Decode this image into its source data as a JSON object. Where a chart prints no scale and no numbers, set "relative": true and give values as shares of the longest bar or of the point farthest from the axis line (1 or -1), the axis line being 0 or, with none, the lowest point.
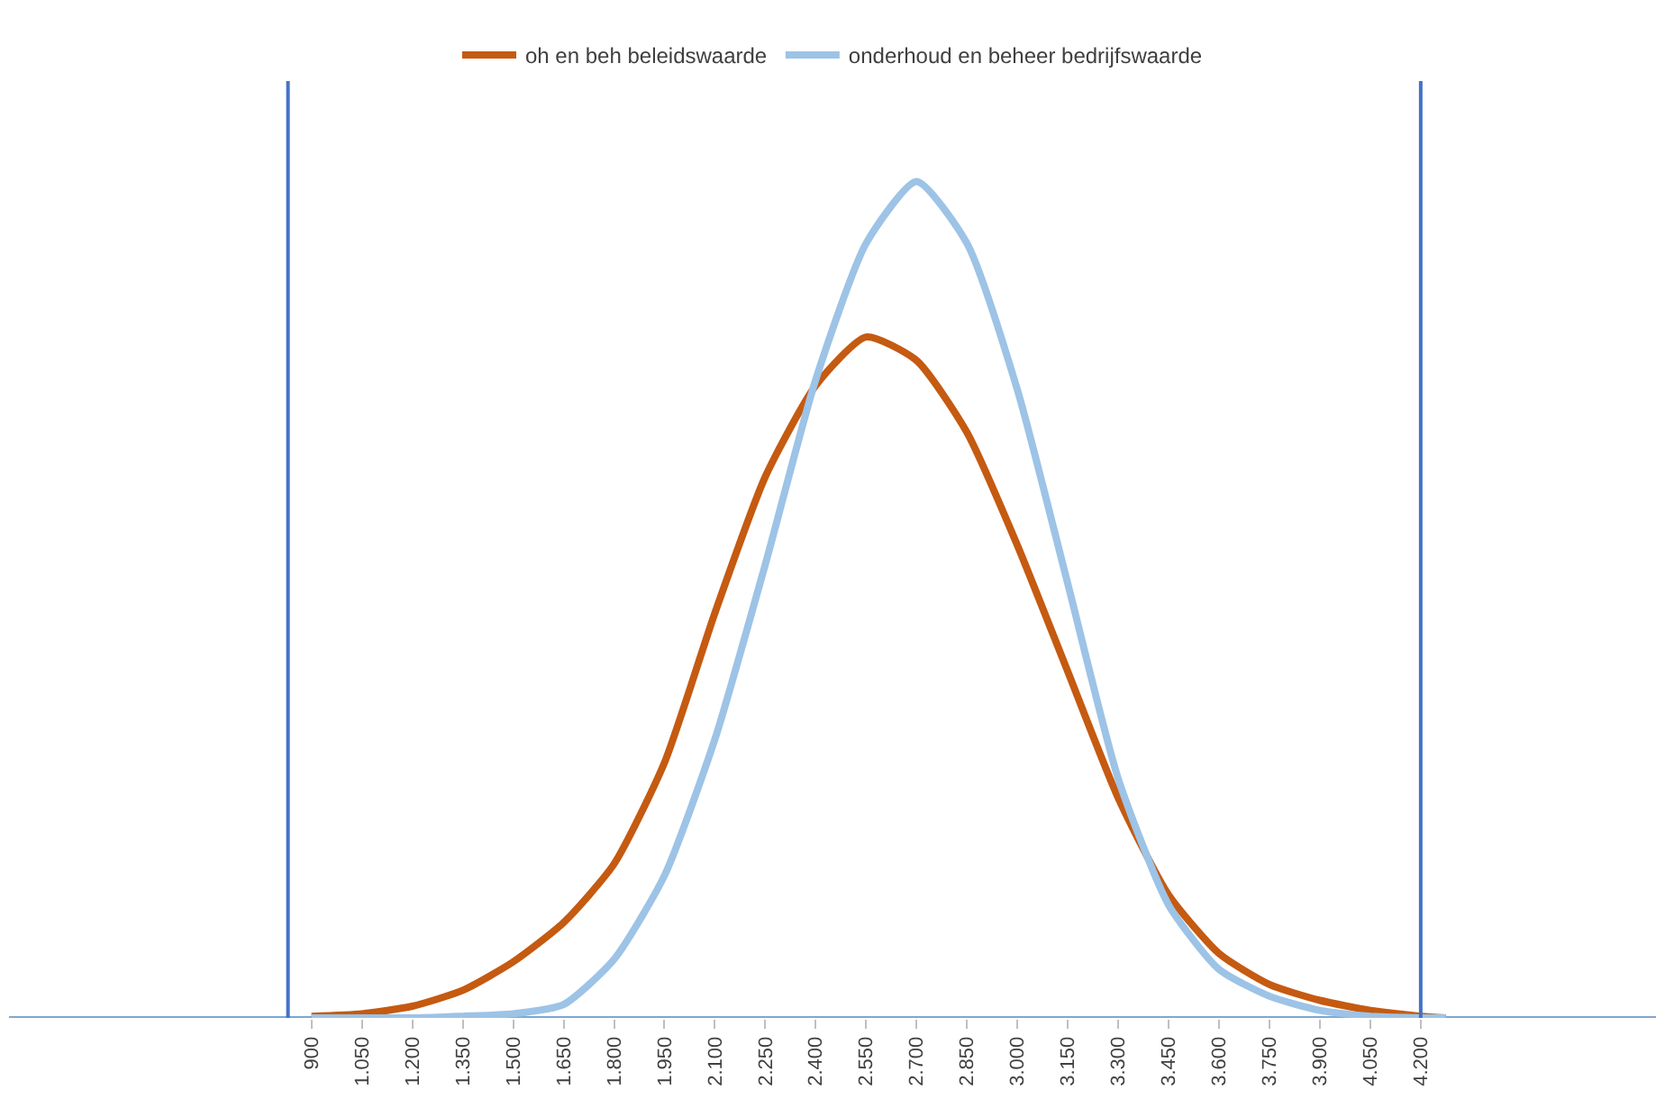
{
  "chart_data": {
    "type": "line",
    "relative": true,
    "legend": "top",
    "grid": false,
    "marker": "none",
    "line_style": "solid",
    "xlim": [
      0,
      4900
    ],
    "xticks": [
      {
        "value": 900,
        "label": "900"
      },
      {
        "value": 1050,
        "label": "1.050"
      },
      {
        "value": 1200,
        "label": "1.200"
      },
      {
        "value": 1350,
        "label": "1.350"
      },
      {
        "value": 1500,
        "label": "1.500"
      },
      {
        "value": 1650,
        "label": "1.650"
      },
      {
        "value": 1800,
        "label": "1.800"
      },
      {
        "value": 1950,
        "label": "1.950"
      },
      {
        "value": 2100,
        "label": "2.100"
      },
      {
        "value": 2250,
        "label": "2.250"
      },
      {
        "value": 2400,
        "label": "2.400"
      },
      {
        "value": 2550,
        "label": "2.550"
      },
      {
        "value": 2700,
        "label": "2.700"
      },
      {
        "value": 2850,
        "label": "2.850"
      },
      {
        "value": 3000,
        "label": "3.000"
      },
      {
        "value": 3150,
        "label": "3.150"
      },
      {
        "value": 3300,
        "label": "3.300"
      },
      {
        "value": 3450,
        "label": "3.450"
      },
      {
        "value": 3600,
        "label": "3.600"
      },
      {
        "value": 3750,
        "label": "3.750"
      },
      {
        "value": 3900,
        "label": "3.900"
      },
      {
        "value": 4050,
        "label": "4.050"
      },
      {
        "value": 4200,
        "label": "4.200"
      }
    ],
    "x": [
      900,
      1050,
      1200,
      1350,
      1500,
      1650,
      1800,
      1950,
      2100,
      2250,
      2400,
      2550,
      2700,
      2850,
      3000,
      3150,
      3300,
      3450,
      3600,
      3750,
      3900,
      4050,
      4200,
      4275
    ],
    "series": [
      {
        "name": "oh en beh beleidswaarde",
        "color": "#c55a11",
        "values": [
          0.002,
          0.005,
          0.014,
          0.033,
          0.067,
          0.114,
          0.184,
          0.305,
          0.484,
          0.647,
          0.756,
          0.814,
          0.786,
          0.7,
          0.565,
          0.414,
          0.263,
          0.147,
          0.077,
          0.04,
          0.021,
          0.009,
          0.002,
          0
        ]
      },
      {
        "name": "onderhoud en beheer bedrijfswaarde",
        "color": "#9dc3e6",
        "values": [
          0,
          0,
          0,
          0.002,
          0.005,
          0.016,
          0.07,
          0.17,
          0.333,
          0.542,
          0.763,
          0.926,
          1.0,
          0.926,
          0.751,
          0.519,
          0.286,
          0.135,
          0.058,
          0.026,
          0.009,
          0.002,
          0,
          0
        ]
      }
    ],
    "ref_lines": [
      {
        "axis": "x",
        "value": 830,
        "color": "#4472c4"
      },
      {
        "axis": "x",
        "value": 4200,
        "color": "#4472c4"
      }
    ]
  }
}
